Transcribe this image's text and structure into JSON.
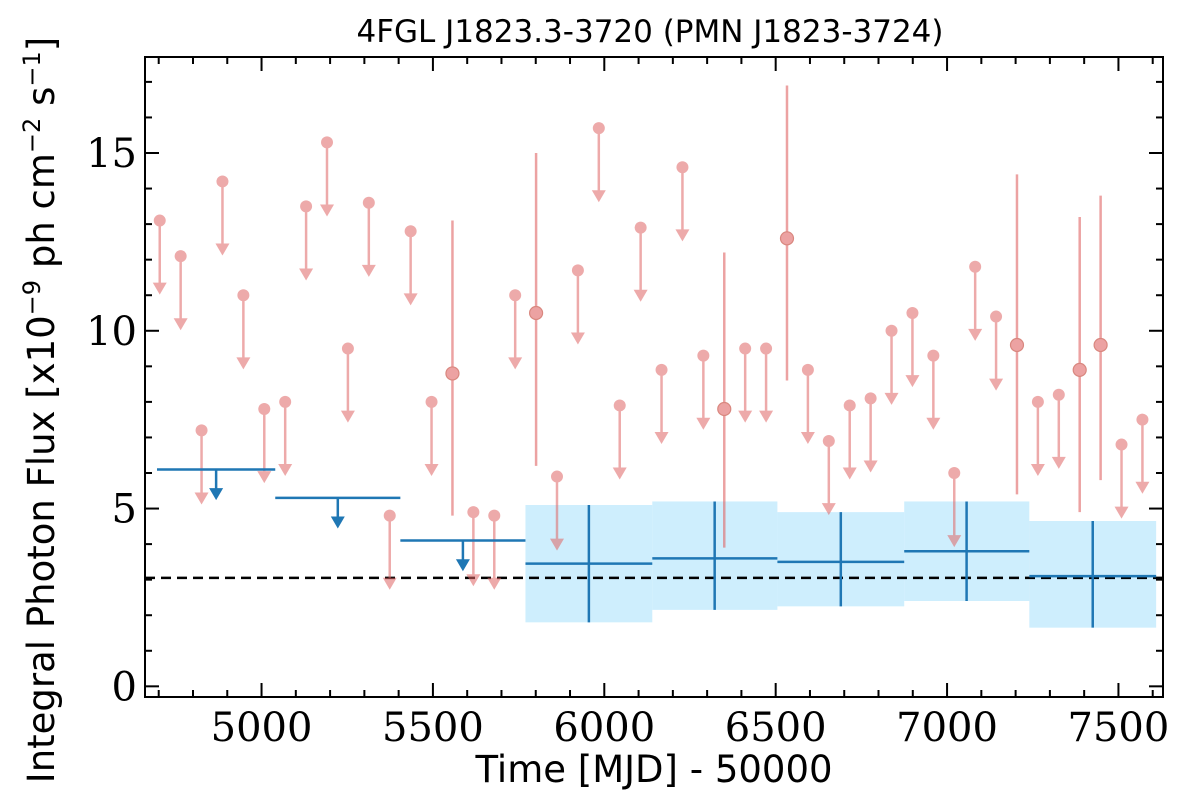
{
  "chart_data": {
    "type": "scatter",
    "title": "4FGL J1823.3-3720 (PMN J1823-3724)",
    "xlabel": "Time [MJD] - 50000",
    "ylabel": "Integral Photon Flux [x10",
    "ylabel_exp": "−9",
    "ylabel_units_a": " ph cm",
    "ylabel_units_exp_a": "−2",
    "ylabel_units_b": " s",
    "ylabel_units_exp_b": "−1",
    "ylabel_close": "]",
    "xlim": [
      4660,
      7630
    ],
    "ylim": [
      -0.3,
      17.7
    ],
    "x_ticks": [
      5000,
      5500,
      6000,
      6500,
      7000,
      7500
    ],
    "x_tick_labels": [
      "5000",
      "5500",
      "6000",
      "6500",
      "7000",
      "7500"
    ],
    "y_ticks": [
      0,
      5,
      10,
      15
    ],
    "y_tick_labels": [
      "0",
      "5",
      "10",
      "15"
    ],
    "reference_line": {
      "y": 3.05,
      "style": "dashed",
      "color": "#000000"
    },
    "colors": {
      "short_bins": "#e06666",
      "long_bins": "#1f77b4",
      "band": "#b3e5fc"
    },
    "short_bins": {
      "upper_limits": [
        {
          "x": 4703,
          "y": 13.1
        },
        {
          "x": 4764,
          "y": 12.1
        },
        {
          "x": 4825,
          "y": 7.2
        },
        {
          "x": 4886,
          "y": 14.2
        },
        {
          "x": 4947,
          "y": 11.0
        },
        {
          "x": 5008,
          "y": 7.8
        },
        {
          "x": 5069,
          "y": 8.0
        },
        {
          "x": 5130,
          "y": 13.5
        },
        {
          "x": 5191,
          "y": 15.3
        },
        {
          "x": 5252,
          "y": 9.5
        },
        {
          "x": 5313,
          "y": 13.6
        },
        {
          "x": 5374,
          "y": 4.8
        },
        {
          "x": 5435,
          "y": 12.8
        },
        {
          "x": 5496,
          "y": 8.0
        },
        {
          "x": 5618,
          "y": 4.9
        },
        {
          "x": 5679,
          "y": 4.8
        },
        {
          "x": 5740,
          "y": 11.0
        },
        {
          "x": 5862,
          "y": 5.9
        },
        {
          "x": 5923,
          "y": 11.7
        },
        {
          "x": 5984,
          "y": 15.7
        },
        {
          "x": 6045,
          "y": 7.9
        },
        {
          "x": 6106,
          "y": 12.9
        },
        {
          "x": 6167,
          "y": 8.9
        },
        {
          "x": 6228,
          "y": 14.6
        },
        {
          "x": 6289,
          "y": 9.3
        },
        {
          "x": 6411,
          "y": 9.5
        },
        {
          "x": 6472,
          "y": 9.5
        },
        {
          "x": 6594,
          "y": 8.9
        },
        {
          "x": 6655,
          "y": 6.9
        },
        {
          "x": 6716,
          "y": 7.9
        },
        {
          "x": 6777,
          "y": 8.1
        },
        {
          "x": 6838,
          "y": 10.0
        },
        {
          "x": 6899,
          "y": 10.5
        },
        {
          "x": 6960,
          "y": 9.3
        },
        {
          "x": 7021,
          "y": 6.0
        },
        {
          "x": 7082,
          "y": 11.8
        },
        {
          "x": 7143,
          "y": 10.4
        },
        {
          "x": 7265,
          "y": 8.0
        },
        {
          "x": 7326,
          "y": 8.2
        },
        {
          "x": 7509,
          "y": 6.8
        },
        {
          "x": 7570,
          "y": 7.5
        }
      ],
      "detections": [
        {
          "x": 5557,
          "y": 8.8,
          "ylow": 4.8,
          "yhigh": 13.1
        },
        {
          "x": 5801,
          "y": 10.5,
          "ylow": 6.2,
          "yhigh": 15.0
        },
        {
          "x": 6350,
          "y": 7.8,
          "ylow": 3.9,
          "yhigh": 12.2
        },
        {
          "x": 6533,
          "y": 12.6,
          "ylow": 8.6,
          "yhigh": 16.9
        },
        {
          "x": 7204,
          "y": 9.6,
          "ylow": 5.4,
          "yhigh": 14.4
        },
        {
          "x": 7387,
          "y": 8.9,
          "ylow": 4.9,
          "yhigh": 13.2
        },
        {
          "x": 7448,
          "y": 9.6,
          "ylow": 5.8,
          "yhigh": 13.8
        }
      ]
    },
    "long_bins": {
      "upper_limits": [
        {
          "x0": 4695,
          "x1": 5040,
          "y": 6.1
        },
        {
          "x0": 5040,
          "x1": 5405,
          "y": 5.3
        },
        {
          "x0": 5405,
          "x1": 5770,
          "y": 4.1
        }
      ],
      "detections": [
        {
          "x0": 5770,
          "x1": 6140,
          "xc": 5955,
          "y": 3.45,
          "ylow": 1.8,
          "yhigh": 5.1
        },
        {
          "x0": 6140,
          "x1": 6505,
          "xc": 6322,
          "y": 3.6,
          "ylow": 2.15,
          "yhigh": 5.2
        },
        {
          "x0": 6505,
          "x1": 6875,
          "xc": 6690,
          "y": 3.5,
          "ylow": 2.25,
          "yhigh": 4.9
        },
        {
          "x0": 6875,
          "x1": 7240,
          "xc": 7057,
          "y": 3.8,
          "ylow": 2.4,
          "yhigh": 5.2
        },
        {
          "x0": 7240,
          "x1": 7610,
          "xc": 7425,
          "y": 3.1,
          "ylow": 1.65,
          "yhigh": 4.65
        }
      ]
    }
  }
}
